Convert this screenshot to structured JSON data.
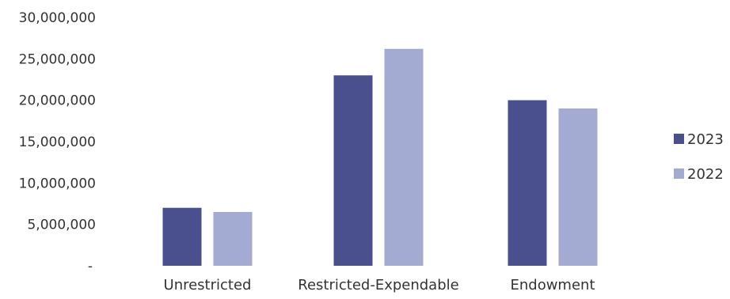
{
  "chart_data": {
    "type": "bar",
    "categories": [
      "Unrestricted",
      "Restricted-Expendable",
      "Endowment"
    ],
    "series": [
      {
        "name": "2023",
        "color": "#4a4f8e",
        "values": [
          7000000,
          23000000,
          20000000
        ]
      },
      {
        "name": "2022",
        "color": "#a4abd3",
        "values": [
          6500000,
          26200000,
          19000000
        ]
      }
    ],
    "ylim": [
      0,
      30000000
    ],
    "yticks": [
      {
        "value": 0,
        "label": "-"
      },
      {
        "value": 5000000,
        "label": "5,000,000"
      },
      {
        "value": 10000000,
        "label": "10,000,000"
      },
      {
        "value": 15000000,
        "label": "15,000,000"
      },
      {
        "value": 20000000,
        "label": "20,000,000"
      },
      {
        "value": 25000000,
        "label": "25,000,000"
      },
      {
        "value": 30000000,
        "label": "30,000,000"
      }
    ],
    "legend_position": "right",
    "grid": false
  }
}
